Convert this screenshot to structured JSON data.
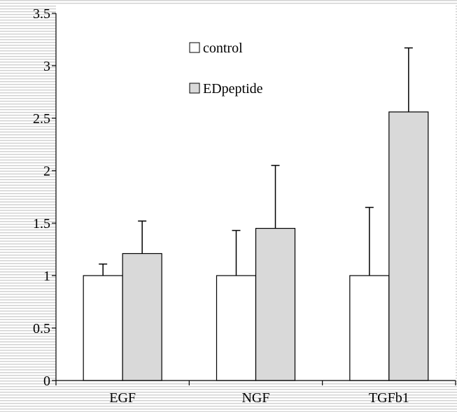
{
  "chart_data": {
    "type": "bar",
    "categories": [
      "EGF",
      "NGF",
      "TGFb1"
    ],
    "series": [
      {
        "name": "control",
        "values": [
          1.0,
          1.0,
          1.0
        ],
        "errors": [
          0.11,
          0.43,
          0.65
        ],
        "color": "#ffffff"
      },
      {
        "name": "EDpeptide",
        "values": [
          1.21,
          1.45,
          2.56
        ],
        "errors": [
          0.31,
          0.6,
          0.61
        ],
        "color": "#d9d9d9"
      }
    ],
    "ylim": [
      0,
      3.5
    ],
    "yticks": [
      "0",
      "0.5",
      "1",
      "1.5",
      "2",
      "2.5",
      "3",
      "3.5"
    ],
    "title": "",
    "xlabel": "",
    "ylabel": "",
    "grid": false,
    "legend_position": "top-center",
    "colors": {
      "background_stripes": "#d0d0d0",
      "axis": "#000000",
      "bar_edge": "#000000"
    }
  }
}
